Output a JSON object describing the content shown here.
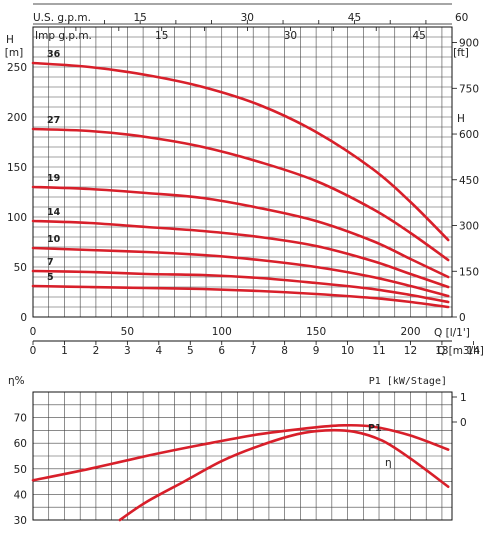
{
  "chart_data": [
    {
      "type": "line",
      "title": "",
      "x_axis": {
        "label": "Q [l/1']",
        "range": [
          0,
          222
        ],
        "ticks": [
          "0",
          "50",
          "100",
          "150",
          "200"
        ]
      },
      "x_axis_m3h": {
        "label": "Q [m3/h]",
        "range": [
          0,
          13.32
        ],
        "ticks": [
          "0",
          "1",
          "2",
          "3",
          "4",
          "5",
          "6",
          "7",
          "8",
          "9",
          "10",
          "11",
          "12",
          "13",
          "14"
        ]
      },
      "top_axis_us": {
        "label": "U.S. g.p.m.",
        "range": [
          0,
          58.65
        ],
        "ticks": [
          "15",
          "30",
          "45",
          "60"
        ]
      },
      "top_axis_imp": {
        "label": "Imp g.p.m.",
        "range": [
          0,
          48.83
        ],
        "ticks": [
          "15",
          "30",
          "45"
        ]
      },
      "y_axis": {
        "title": "H",
        "label": "[m]",
        "range": [
          0,
          290
        ],
        "ticks": [
          "0",
          "50",
          "100",
          "150",
          "200",
          "250"
        ]
      },
      "y_axis_right": {
        "title": "H",
        "label": "[ft]",
        "range": [
          0,
          951
        ],
        "ticks": [
          "0",
          "150",
          "300",
          "450",
          "600",
          "750",
          "900"
        ]
      },
      "grid": true,
      "series": [
        {
          "name": "36",
          "x": [
            0,
            30,
            60,
            90,
            120,
            150,
            180,
            200,
            220
          ],
          "y": [
            254,
            250,
            242,
            230,
            212,
            185,
            148,
            115,
            77
          ]
        },
        {
          "name": "27",
          "x": [
            0,
            30,
            60,
            90,
            120,
            150,
            180,
            200,
            220
          ],
          "y": [
            188,
            186,
            180,
            170,
            155,
            136,
            108,
            84,
            57
          ]
        },
        {
          "name": "19",
          "x": [
            0,
            30,
            60,
            90,
            120,
            150,
            180,
            200,
            220
          ],
          "y": [
            130,
            128,
            124,
            119,
            109,
            96,
            76,
            58,
            40
          ]
        },
        {
          "name": "14",
          "x": [
            0,
            30,
            60,
            90,
            120,
            150,
            180,
            200,
            220
          ],
          "y": [
            96,
            94,
            90,
            86,
            80,
            71,
            56,
            43,
            30
          ]
        },
        {
          "name": "10",
          "x": [
            0,
            30,
            60,
            90,
            120,
            150,
            180,
            200,
            220
          ],
          "y": [
            69,
            67,
            65,
            62,
            57,
            50,
            40,
            31,
            21
          ]
        },
        {
          "name": "7",
          "x": [
            0,
            30,
            60,
            90,
            120,
            150,
            180,
            200,
            220
          ],
          "y": [
            46,
            45,
            43,
            42,
            39,
            34,
            28,
            22,
            15
          ]
        },
        {
          "name": "5",
          "x": [
            0,
            30,
            60,
            90,
            120,
            150,
            180,
            200,
            220
          ],
          "y": [
            31,
            30,
            29,
            28,
            26,
            23,
            19,
            15,
            10
          ]
        }
      ]
    },
    {
      "type": "line",
      "title": "",
      "x_axis": {
        "range": [
          0,
          222
        ]
      },
      "y_axis": {
        "label": "η%",
        "range": [
          30,
          80
        ],
        "ticks": [
          "30",
          "40",
          "50",
          "60",
          "70"
        ]
      },
      "y_axis_right": {
        "label": "P1 [kW/Stage]",
        "ticks": [
          "1",
          "0"
        ]
      },
      "grid": true,
      "series": [
        {
          "name": "P1",
          "x": [
            0,
            30,
            60,
            90,
            120,
            150,
            165,
            180,
            200,
            220
          ],
          "y": [
            45.5,
            50,
            55,
            59.5,
            63.5,
            66.2,
            67,
            66.5,
            63,
            57.5
          ]
        },
        {
          "name": "η",
          "x": [
            46,
            60,
            80,
            100,
            120,
            140,
            155,
            170,
            185,
            200,
            220
          ],
          "y": [
            30,
            37,
            45,
            53,
            59,
            63.5,
            65,
            64.5,
            61,
            54,
            43
          ]
        }
      ]
    }
  ]
}
